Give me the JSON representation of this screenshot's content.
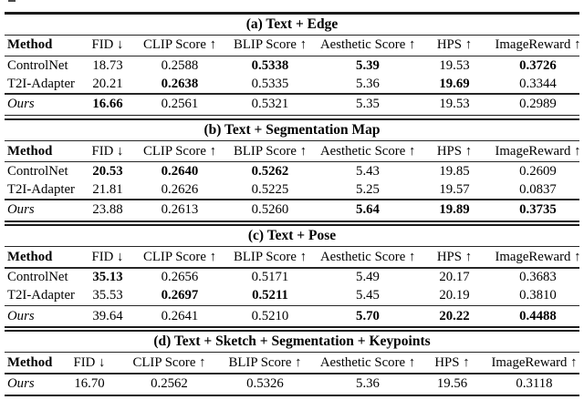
{
  "columns": [
    "Method",
    "FID ↓",
    "CLIP Score ↑",
    "BLIP Score ↑",
    "Aesthetic Score ↑",
    "HPS ↑",
    "ImageReward ↑"
  ],
  "tables": [
    {
      "id": "a",
      "caption": "(a) Text + Edge",
      "rows": [
        {
          "method": "ControlNet",
          "style": "baseline",
          "values": [
            "18.73",
            "0.2588",
            "0.5338",
            "5.39",
            "19.53",
            "0.3726"
          ],
          "bold": [
            0,
            0,
            1,
            1,
            0,
            1
          ]
        },
        {
          "method": "T2I-Adapter",
          "style": "baseline",
          "values": [
            "20.21",
            "0.2638",
            "0.5335",
            "5.36",
            "19.69",
            "0.3344"
          ],
          "bold": [
            0,
            1,
            0,
            0,
            1,
            0
          ]
        },
        {
          "method": "Ours",
          "style": "ours",
          "values": [
            "16.66",
            "0.2561",
            "0.5321",
            "5.35",
            "19.53",
            "0.2989"
          ],
          "bold": [
            1,
            0,
            0,
            0,
            0,
            0
          ]
        }
      ]
    },
    {
      "id": "b",
      "caption": "(b) Text + Segmentation Map",
      "rows": [
        {
          "method": "ControlNet",
          "style": "baseline",
          "values": [
            "20.53",
            "0.2640",
            "0.5262",
            "5.43",
            "19.85",
            "0.2609"
          ],
          "bold": [
            1,
            1,
            1,
            0,
            0,
            0
          ]
        },
        {
          "method": "T2I-Adapter",
          "style": "baseline",
          "values": [
            "21.81",
            "0.2626",
            "0.5225",
            "5.25",
            "19.57",
            "0.0837"
          ],
          "bold": [
            0,
            0,
            0,
            0,
            0,
            0
          ]
        },
        {
          "method": "Ours",
          "style": "ours",
          "values": [
            "23.88",
            "0.2613",
            "0.5260",
            "5.64",
            "19.89",
            "0.3735"
          ],
          "bold": [
            0,
            0,
            0,
            1,
            1,
            1
          ]
        }
      ]
    },
    {
      "id": "c",
      "caption": "(c) Text + Pose",
      "rows": [
        {
          "method": "ControlNet",
          "style": "baseline",
          "values": [
            "35.13",
            "0.2656",
            "0.5171",
            "5.49",
            "20.17",
            "0.3683"
          ],
          "bold": [
            1,
            0,
            0,
            0,
            0,
            0
          ]
        },
        {
          "method": "T2I-Adapter",
          "style": "baseline",
          "values": [
            "35.53",
            "0.2697",
            "0.5211",
            "5.45",
            "20.19",
            "0.3810"
          ],
          "bold": [
            0,
            1,
            1,
            0,
            0,
            0
          ]
        },
        {
          "method": "Ours",
          "style": "ours",
          "values": [
            "39.64",
            "0.2641",
            "0.5210",
            "5.70",
            "20.22",
            "0.4488"
          ],
          "bold": [
            0,
            0,
            0,
            1,
            1,
            1
          ]
        }
      ]
    },
    {
      "id": "d",
      "caption": "(d) Text + Sketch + Segmentation + Keypoints",
      "rows": [
        {
          "method": "Ours",
          "style": "ours-only",
          "values": [
            "16.70",
            "0.2562",
            "0.5326",
            "5.36",
            "19.56",
            "0.3118"
          ],
          "bold": [
            0,
            0,
            0,
            0,
            0,
            0
          ]
        }
      ]
    }
  ]
}
